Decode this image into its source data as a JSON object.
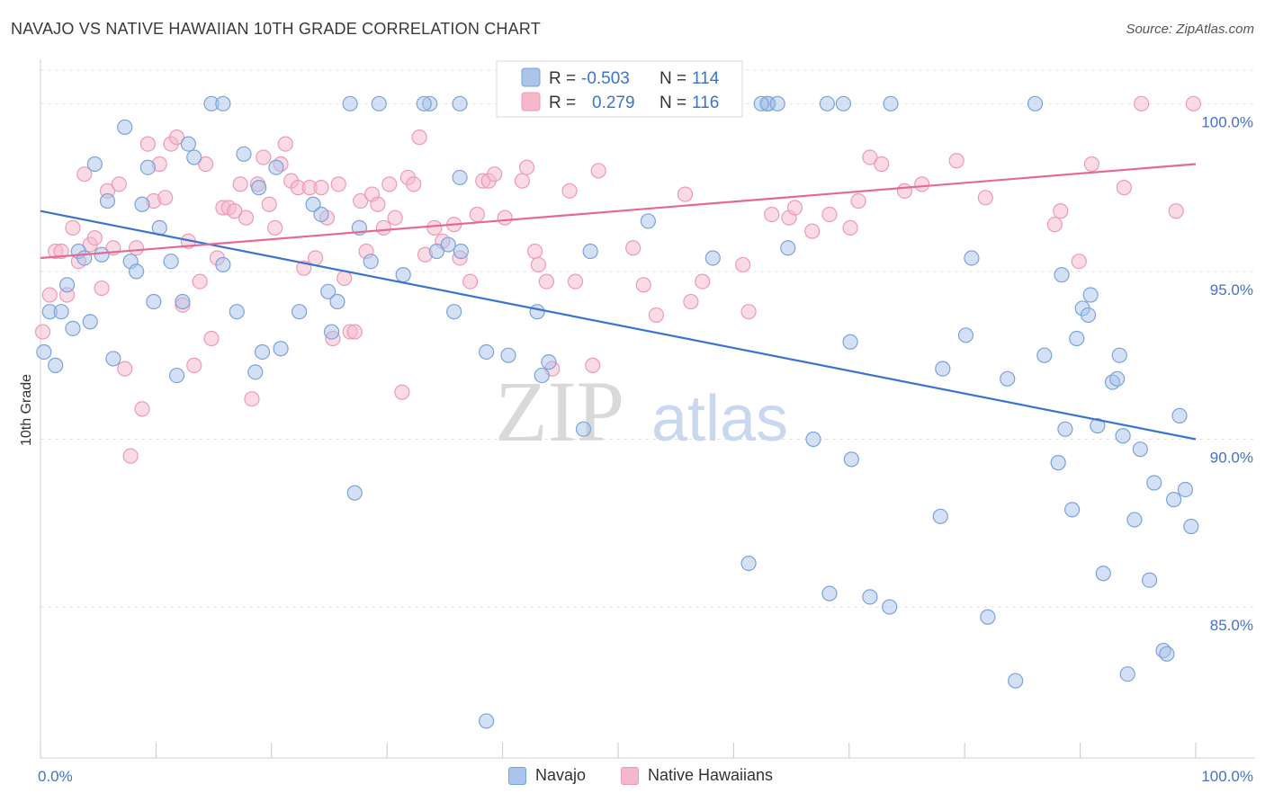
{
  "header": {
    "title": "NAVAJO VS NATIVE HAWAIIAN 10TH GRADE CORRELATION CHART",
    "source": "Source: ZipAtlas.com"
  },
  "watermark": {
    "zip": "ZIP",
    "atlas": "atlas"
  },
  "stats_legend": {
    "rows": [
      {
        "r_label": "R = ",
        "r_value": "-0.503",
        "n_label": "N = ",
        "n_value": "114"
      },
      {
        "r_label": "R = ",
        "r_value": "0.279",
        "n_label": "N = ",
        "n_value": "116"
      }
    ]
  },
  "bottom_legend": {
    "navajo": "Navajo",
    "hawaiian": "Native Hawaiians"
  },
  "colors": {
    "navajo_fill": "#aac4ea",
    "navajo_stroke": "#7aa3dc",
    "navajo_line": "#3a74cc",
    "hawaiian_fill": "#f5b8cb",
    "hawaiian_stroke": "#ee9ab5",
    "hawaiian_line": "#e56a93",
    "tick_label": "#4472c4"
  },
  "chart_data": {
    "type": "scatter",
    "title": "NAVAJO VS NATIVE HAWAIIAN 10TH GRADE CORRELATION CHART",
    "xlabel": "",
    "ylabel": "10th Grade",
    "xlim": [
      0,
      100
    ],
    "ylim": [
      80.5,
      101
    ],
    "x_tick_labels": [
      "0.0%",
      "100.0%"
    ],
    "y_ticks": [
      85,
      90,
      95,
      100
    ],
    "y_tick_labels": [
      "85.0%",
      "90.0%",
      "95.0%",
      "100.0%"
    ],
    "grid": true,
    "legend": "top-center",
    "series": [
      {
        "name": "Navajo",
        "R": -0.503,
        "N": 114,
        "trend": {
          "x": [
            0,
            100
          ],
          "y": [
            96.8,
            90.0
          ]
        },
        "points": [
          [
            0.3,
            92.6
          ],
          [
            0.8,
            93.8
          ],
          [
            1.3,
            92.2
          ],
          [
            1.8,
            93.8
          ],
          [
            2.3,
            94.6
          ],
          [
            2.8,
            93.3
          ],
          [
            3.3,
            95.6
          ],
          [
            3.8,
            95.4
          ],
          [
            4.3,
            93.5
          ],
          [
            4.7,
            98.2
          ],
          [
            5.3,
            95.5
          ],
          [
            5.8,
            97.1
          ],
          [
            6.3,
            92.4
          ],
          [
            7.3,
            99.3
          ],
          [
            7.8,
            95.3
          ],
          [
            8.3,
            95.0
          ],
          [
            8.8,
            97.0
          ],
          [
            9.3,
            98.1
          ],
          [
            9.8,
            94.1
          ],
          [
            10.3,
            96.3
          ],
          [
            11.3,
            95.3
          ],
          [
            11.8,
            91.9
          ],
          [
            12.3,
            94.1
          ],
          [
            12.8,
            98.8
          ],
          [
            13.3,
            98.4
          ],
          [
            14.8,
            100.0
          ],
          [
            15.8,
            100.0
          ],
          [
            15.8,
            95.2
          ],
          [
            17.0,
            93.8
          ],
          [
            17.6,
            98.5
          ],
          [
            18.9,
            97.5
          ],
          [
            18.6,
            92.0
          ],
          [
            19.2,
            92.6
          ],
          [
            20.4,
            98.1
          ],
          [
            20.8,
            92.7
          ],
          [
            22.4,
            93.8
          ],
          [
            23.6,
            97.0
          ],
          [
            24.3,
            96.7
          ],
          [
            24.9,
            94.4
          ],
          [
            25.2,
            93.2
          ],
          [
            25.7,
            94.1
          ],
          [
            26.8,
            100.0
          ],
          [
            27.2,
            88.4
          ],
          [
            27.6,
            96.3
          ],
          [
            28.6,
            95.3
          ],
          [
            29.3,
            100.0
          ],
          [
            31.4,
            94.9
          ],
          [
            33.7,
            100.0
          ],
          [
            34.3,
            95.6
          ],
          [
            35.3,
            95.8
          ],
          [
            35.8,
            93.8
          ],
          [
            36.3,
            97.8
          ],
          [
            36.3,
            100.0
          ],
          [
            38.6,
            92.6
          ],
          [
            40.5,
            92.5
          ],
          [
            43.0,
            93.8
          ],
          [
            43.4,
            91.9
          ],
          [
            44.0,
            92.3
          ],
          [
            47.0,
            90.3
          ],
          [
            47.6,
            95.6
          ],
          [
            52.6,
            96.5
          ],
          [
            58.2,
            95.4
          ],
          [
            61.3,
            86.3
          ],
          [
            62.9,
            100.0
          ],
          [
            63.0,
            100.0
          ],
          [
            63.8,
            100.0
          ],
          [
            64.7,
            95.7
          ],
          [
            66.9,
            90.0
          ],
          [
            68.1,
            100.0
          ],
          [
            68.3,
            85.4
          ],
          [
            69.5,
            100.0
          ],
          [
            70.1,
            92.9
          ],
          [
            70.2,
            89.4
          ],
          [
            71.8,
            85.3
          ],
          [
            73.6,
            100.0
          ],
          [
            73.5,
            85.0
          ],
          [
            77.9,
            87.7
          ],
          [
            78.1,
            92.1
          ],
          [
            80.1,
            93.1
          ],
          [
            80.6,
            95.4
          ],
          [
            82.0,
            84.7
          ],
          [
            83.7,
            91.8
          ],
          [
            84.4,
            82.8
          ],
          [
            86.1,
            100.0
          ],
          [
            86.9,
            92.5
          ],
          [
            88.1,
            89.3
          ],
          [
            88.4,
            94.9
          ],
          [
            88.7,
            90.3
          ],
          [
            89.3,
            87.9
          ],
          [
            89.7,
            93.0
          ],
          [
            90.2,
            93.9
          ],
          [
            90.7,
            93.7
          ],
          [
            90.9,
            94.3
          ],
          [
            91.5,
            90.4
          ],
          [
            92.0,
            86.0
          ],
          [
            92.8,
            91.7
          ],
          [
            93.2,
            91.8
          ],
          [
            93.4,
            92.5
          ],
          [
            93.7,
            90.1
          ],
          [
            94.1,
            83.0
          ],
          [
            94.7,
            87.6
          ],
          [
            95.2,
            89.7
          ],
          [
            96.0,
            85.8
          ],
          [
            96.4,
            88.7
          ],
          [
            97.2,
            83.7
          ],
          [
            97.5,
            83.6
          ],
          [
            98.1,
            88.2
          ],
          [
            98.6,
            90.7
          ],
          [
            99.1,
            88.5
          ],
          [
            99.6,
            87.4
          ],
          [
            62.4,
            100.0
          ],
          [
            33.2,
            100.0
          ],
          [
            36.4,
            95.6
          ],
          [
            38.6,
            81.6
          ]
        ]
      },
      {
        "name": "Native Hawaiians",
        "R": 0.279,
        "N": 116,
        "trend": {
          "x": [
            0,
            100
          ],
          "y": [
            95.4,
            98.2
          ]
        },
        "points": [
          [
            0.2,
            93.2
          ],
          [
            0.8,
            94.3
          ],
          [
            1.3,
            95.6
          ],
          [
            1.8,
            95.6
          ],
          [
            2.3,
            94.3
          ],
          [
            2.8,
            96.3
          ],
          [
            3.3,
            95.3
          ],
          [
            3.8,
            97.9
          ],
          [
            4.3,
            95.8
          ],
          [
            4.7,
            96.0
          ],
          [
            5.3,
            94.5
          ],
          [
            5.8,
            97.4
          ],
          [
            6.3,
            95.7
          ],
          [
            6.8,
            97.6
          ],
          [
            7.3,
            92.1
          ],
          [
            7.8,
            89.5
          ],
          [
            8.3,
            95.7
          ],
          [
            8.8,
            90.9
          ],
          [
            9.3,
            98.8
          ],
          [
            9.8,
            97.1
          ],
          [
            10.3,
            98.2
          ],
          [
            10.8,
            97.2
          ],
          [
            11.3,
            98.8
          ],
          [
            11.8,
            99.0
          ],
          [
            12.3,
            94.0
          ],
          [
            12.8,
            95.9
          ],
          [
            13.3,
            92.2
          ],
          [
            13.8,
            94.7
          ],
          [
            14.3,
            98.2
          ],
          [
            14.8,
            93.0
          ],
          [
            15.3,
            95.4
          ],
          [
            15.8,
            96.9
          ],
          [
            16.3,
            96.9
          ],
          [
            16.8,
            96.8
          ],
          [
            17.3,
            97.6
          ],
          [
            17.8,
            96.6
          ],
          [
            18.3,
            91.2
          ],
          [
            18.8,
            97.6
          ],
          [
            19.3,
            98.4
          ],
          [
            19.8,
            97.0
          ],
          [
            20.3,
            96.3
          ],
          [
            20.8,
            98.2
          ],
          [
            21.2,
            98.8
          ],
          [
            21.7,
            97.7
          ],
          [
            22.3,
            97.5
          ],
          [
            22.8,
            95.1
          ],
          [
            23.3,
            97.5
          ],
          [
            23.8,
            95.4
          ],
          [
            24.3,
            97.5
          ],
          [
            24.8,
            96.6
          ],
          [
            25.3,
            93.0
          ],
          [
            25.8,
            97.6
          ],
          [
            26.3,
            94.8
          ],
          [
            26.8,
            93.2
          ],
          [
            27.2,
            93.2
          ],
          [
            27.7,
            97.1
          ],
          [
            28.2,
            95.6
          ],
          [
            28.7,
            97.3
          ],
          [
            29.2,
            97.0
          ],
          [
            29.7,
            96.3
          ],
          [
            30.2,
            97.6
          ],
          [
            30.7,
            96.6
          ],
          [
            31.3,
            91.4
          ],
          [
            31.8,
            97.8
          ],
          [
            32.3,
            97.6
          ],
          [
            32.8,
            99.0
          ],
          [
            33.3,
            95.5
          ],
          [
            34.1,
            96.3
          ],
          [
            34.8,
            95.9
          ],
          [
            35.8,
            96.4
          ],
          [
            36.3,
            95.4
          ],
          [
            37.2,
            94.7
          ],
          [
            37.8,
            96.7
          ],
          [
            38.3,
            97.7
          ],
          [
            38.8,
            97.7
          ],
          [
            39.3,
            97.9
          ],
          [
            40.2,
            96.6
          ],
          [
            41.7,
            97.7
          ],
          [
            42.1,
            98.1
          ],
          [
            42.8,
            95.6
          ],
          [
            43.1,
            95.2
          ],
          [
            43.8,
            94.7
          ],
          [
            44.3,
            92.1
          ],
          [
            45.8,
            97.4
          ],
          [
            46.3,
            94.7
          ],
          [
            47.8,
            92.2
          ],
          [
            48.3,
            98.0
          ],
          [
            51.3,
            95.7
          ],
          [
            52.2,
            94.6
          ],
          [
            53.3,
            93.7
          ],
          [
            55.8,
            97.3
          ],
          [
            56.3,
            94.1
          ],
          [
            57.3,
            94.7
          ],
          [
            60.8,
            95.2
          ],
          [
            61.3,
            93.8
          ],
          [
            63.3,
            96.7
          ],
          [
            64.8,
            96.6
          ],
          [
            65.3,
            96.9
          ],
          [
            66.8,
            96.2
          ],
          [
            68.3,
            96.7
          ],
          [
            70.1,
            96.3
          ],
          [
            70.8,
            97.1
          ],
          [
            71.8,
            98.4
          ],
          [
            72.8,
            98.2
          ],
          [
            74.8,
            97.4
          ],
          [
            76.3,
            97.6
          ],
          [
            79.3,
            98.3
          ],
          [
            81.8,
            97.2
          ],
          [
            87.8,
            96.4
          ],
          [
            88.3,
            96.8
          ],
          [
            89.9,
            95.3
          ],
          [
            91.0,
            98.2
          ],
          [
            93.8,
            97.5
          ],
          [
            95.3,
            100.0
          ],
          [
            98.3,
            96.8
          ],
          [
            99.8,
            100.0
          ]
        ]
      }
    ]
  }
}
